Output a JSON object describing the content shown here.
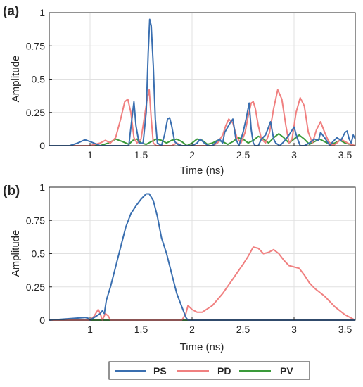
{
  "chart_data": [
    {
      "panel_label": "(a)",
      "type": "line",
      "xlabel": "Time (ns)",
      "ylabel": "Amplitude",
      "xlim": [
        0.6,
        3.6
      ],
      "ylim": [
        0,
        1
      ],
      "xticks": [
        "1",
        "1.5",
        "2",
        "2.5",
        "3",
        "3.5"
      ],
      "yticks": [
        "0",
        "0.25",
        "0.5",
        "0.75",
        "1"
      ],
      "grid": true,
      "series": [
        {
          "name": "PS",
          "color": "#3a6fb0",
          "x": [
            0.6,
            0.8,
            0.88,
            0.95,
            1.02,
            1.1,
            1.38,
            1.41,
            1.43,
            1.45,
            1.48,
            1.52,
            1.55,
            1.57,
            1.585,
            1.6,
            1.62,
            1.64,
            1.66,
            1.7,
            1.73,
            1.76,
            1.78,
            1.8,
            1.83,
            1.86,
            1.9,
            1.95,
            2.0,
            2.05,
            2.08,
            2.12,
            2.16,
            2.2,
            2.24,
            2.27,
            2.3,
            2.32,
            2.35,
            2.38,
            2.4,
            2.43,
            2.46,
            2.5,
            2.53,
            2.56,
            2.58,
            2.6,
            2.62,
            2.65,
            2.68,
            2.72,
            2.75,
            2.77,
            2.8,
            2.82,
            2.86,
            2.9,
            2.95,
            3.0,
            3.03,
            3.06,
            3.1,
            3.15,
            3.2,
            3.24,
            3.26,
            3.3,
            3.35,
            3.38,
            3.42,
            3.46,
            3.48,
            3.5,
            3.52,
            3.54,
            3.56,
            3.58,
            3.6
          ],
          "y": [
            0,
            0,
            0.02,
            0.045,
            0.025,
            0,
            0,
            0.2,
            0.33,
            0.15,
            0.02,
            0.02,
            0.25,
            0.7,
            0.95,
            0.9,
            0.6,
            0.2,
            0.02,
            0,
            0.08,
            0.2,
            0.21,
            0.15,
            0.03,
            0.01,
            0,
            0,
            0,
            0.02,
            0.05,
            0.02,
            0,
            0,
            0.03,
            0.05,
            0.02,
            0.1,
            0.14,
            0.18,
            0.2,
            0.05,
            0,
            0.1,
            0.2,
            0.32,
            0.12,
            0.02,
            0,
            0,
            0.05,
            0.08,
            0.14,
            0.18,
            0.05,
            0.02,
            0,
            0.03,
            0.08,
            0.14,
            0.06,
            0,
            0,
            0.02,
            0.05,
            0.04,
            0.1,
            0.06,
            0,
            0.03,
            0.06,
            0.04,
            0.07,
            0.1,
            0.11,
            0.05,
            0.02,
            0.08,
            0.05
          ]
        },
        {
          "name": "PD",
          "color": "#f08080",
          "x": [
            0.6,
            1.0,
            1.1,
            1.15,
            1.2,
            1.25,
            1.3,
            1.34,
            1.37,
            1.4,
            1.43,
            1.46,
            1.5,
            1.53,
            1.56,
            1.58,
            1.6,
            1.62,
            1.65,
            1.7,
            1.75,
            1.8,
            1.85,
            1.9,
            1.95,
            2.0,
            2.05,
            2.1,
            2.15,
            2.2,
            2.25,
            2.3,
            2.33,
            2.36,
            2.4,
            2.44,
            2.48,
            2.52,
            2.55,
            2.58,
            2.6,
            2.62,
            2.65,
            2.68,
            2.72,
            2.76,
            2.8,
            2.84,
            2.88,
            2.92,
            2.95,
            2.98,
            3.02,
            3.06,
            3.1,
            3.14,
            3.18,
            3.22,
            3.26,
            3.3,
            3.34,
            3.38,
            3.42,
            3.46,
            3.5,
            3.55,
            3.6
          ],
          "y": [
            0,
            0,
            0.02,
            0.04,
            0.02,
            0.06,
            0.2,
            0.33,
            0.35,
            0.25,
            0.06,
            0.02,
            0.05,
            0.2,
            0.35,
            0.42,
            0.2,
            0.02,
            0,
            0,
            0,
            0,
            0.02,
            0,
            0,
            0,
            0,
            0,
            0,
            0,
            0.02,
            0.08,
            0.15,
            0.2,
            0.17,
            0.06,
            0.02,
            0.1,
            0.22,
            0.32,
            0.33,
            0.28,
            0.15,
            0.05,
            0.02,
            0.1,
            0.28,
            0.42,
            0.35,
            0.15,
            0.02,
            0.05,
            0.25,
            0.36,
            0.3,
            0.1,
            0.02,
            0.12,
            0.18,
            0.1,
            0.03,
            0,
            0.02,
            0.05,
            0.03,
            0.01,
            0
          ]
        },
        {
          "name": "PV",
          "color": "#3a9a3a",
          "x": [
            0.6,
            1.1,
            1.18,
            1.25,
            1.32,
            1.38,
            1.42,
            1.46,
            1.5,
            1.55,
            1.6,
            1.65,
            1.7,
            1.75,
            1.8,
            1.85,
            1.9,
            1.95,
            2.0,
            2.05,
            2.1,
            2.15,
            2.2,
            2.25,
            2.3,
            2.35,
            2.4,
            2.45,
            2.5,
            2.55,
            2.6,
            2.65,
            2.7,
            2.75,
            2.8,
            2.85,
            2.9,
            2.95,
            3.0,
            3.05,
            3.1,
            3.15,
            3.2,
            3.25,
            3.3,
            3.35,
            3.4,
            3.45,
            3.5,
            3.55,
            3.6
          ],
          "y": [
            0,
            0,
            0.02,
            0.05,
            0.03,
            0.01,
            0.04,
            0.05,
            0.02,
            0.01,
            0.03,
            0.05,
            0.04,
            0.02,
            0.04,
            0.05,
            0.03,
            0,
            0.02,
            0.05,
            0.04,
            0.01,
            0.02,
            0.04,
            0.03,
            0.01,
            0.03,
            0.06,
            0.05,
            0.02,
            0.04,
            0.07,
            0.05,
            0.02,
            0.06,
            0.09,
            0.06,
            0.02,
            0.05,
            0.08,
            0.05,
            0.01,
            0.03,
            0.05,
            0.03,
            0.01,
            0.02,
            0.04,
            0.02,
            0.01,
            0
          ]
        }
      ]
    },
    {
      "panel_label": "(b)",
      "type": "line",
      "xlabel": "Time (ns)",
      "ylabel": "Amplitude",
      "xlim": [
        0.6,
        3.6
      ],
      "ylim": [
        0,
        1
      ],
      "xticks": [
        "1",
        "1.5",
        "2",
        "2.5",
        "3",
        "3.5"
      ],
      "yticks": [
        "0",
        "0.25",
        "0.5",
        "0.75",
        "1"
      ],
      "grid": true,
      "series": [
        {
          "name": "PS",
          "color": "#3a6fb0",
          "x": [
            0.6,
            0.95,
            0.98,
            1.0,
            1.1,
            1.12,
            1.14,
            1.16,
            1.2,
            1.25,
            1.3,
            1.35,
            1.4,
            1.45,
            1.5,
            1.55,
            1.58,
            1.62,
            1.66,
            1.7,
            1.75,
            1.8,
            1.85,
            1.9,
            1.94,
            1.96,
            2.0,
            3.6
          ],
          "y": [
            0,
            0.02,
            0.015,
            0,
            0.05,
            0.07,
            0.05,
            0.15,
            0.25,
            0.4,
            0.55,
            0.7,
            0.8,
            0.86,
            0.91,
            0.95,
            0.95,
            0.9,
            0.78,
            0.62,
            0.5,
            0.35,
            0.2,
            0.1,
            0.02,
            0,
            0,
            0
          ]
        },
        {
          "name": "PD",
          "color": "#f08080",
          "x": [
            0.6,
            1.0,
            1.04,
            1.08,
            1.1,
            1.12,
            1.15,
            1.18,
            1.2,
            1.5,
            1.9,
            1.94,
            1.96,
            2.0,
            2.05,
            2.1,
            2.2,
            2.3,
            2.4,
            2.5,
            2.55,
            2.6,
            2.65,
            2.7,
            2.75,
            2.8,
            2.85,
            2.9,
            2.95,
            3.0,
            3.05,
            3.1,
            3.15,
            3.2,
            3.3,
            3.4,
            3.5,
            3.6
          ],
          "y": [
            0,
            0,
            0.03,
            0.08,
            0.05,
            0,
            0.05,
            0.03,
            0,
            0,
            0,
            0.05,
            0.11,
            0.08,
            0.06,
            0.06,
            0.11,
            0.2,
            0.31,
            0.42,
            0.48,
            0.55,
            0.54,
            0.5,
            0.51,
            0.53,
            0.5,
            0.45,
            0.41,
            0.4,
            0.39,
            0.34,
            0.28,
            0.24,
            0.18,
            0.1,
            0.04,
            0
          ]
        },
        {
          "name": "PV",
          "color": "#3a9a3a",
          "x": [
            0.6,
            3.6
          ],
          "y": [
            0,
            0
          ]
        }
      ]
    }
  ],
  "legend": {
    "placement": "bottom-center",
    "items": [
      {
        "label": "PS",
        "color": "#3a6fb0"
      },
      {
        "label": "PD",
        "color": "#f08080"
      },
      {
        "label": "PV",
        "color": "#3a9a3a"
      }
    ]
  }
}
